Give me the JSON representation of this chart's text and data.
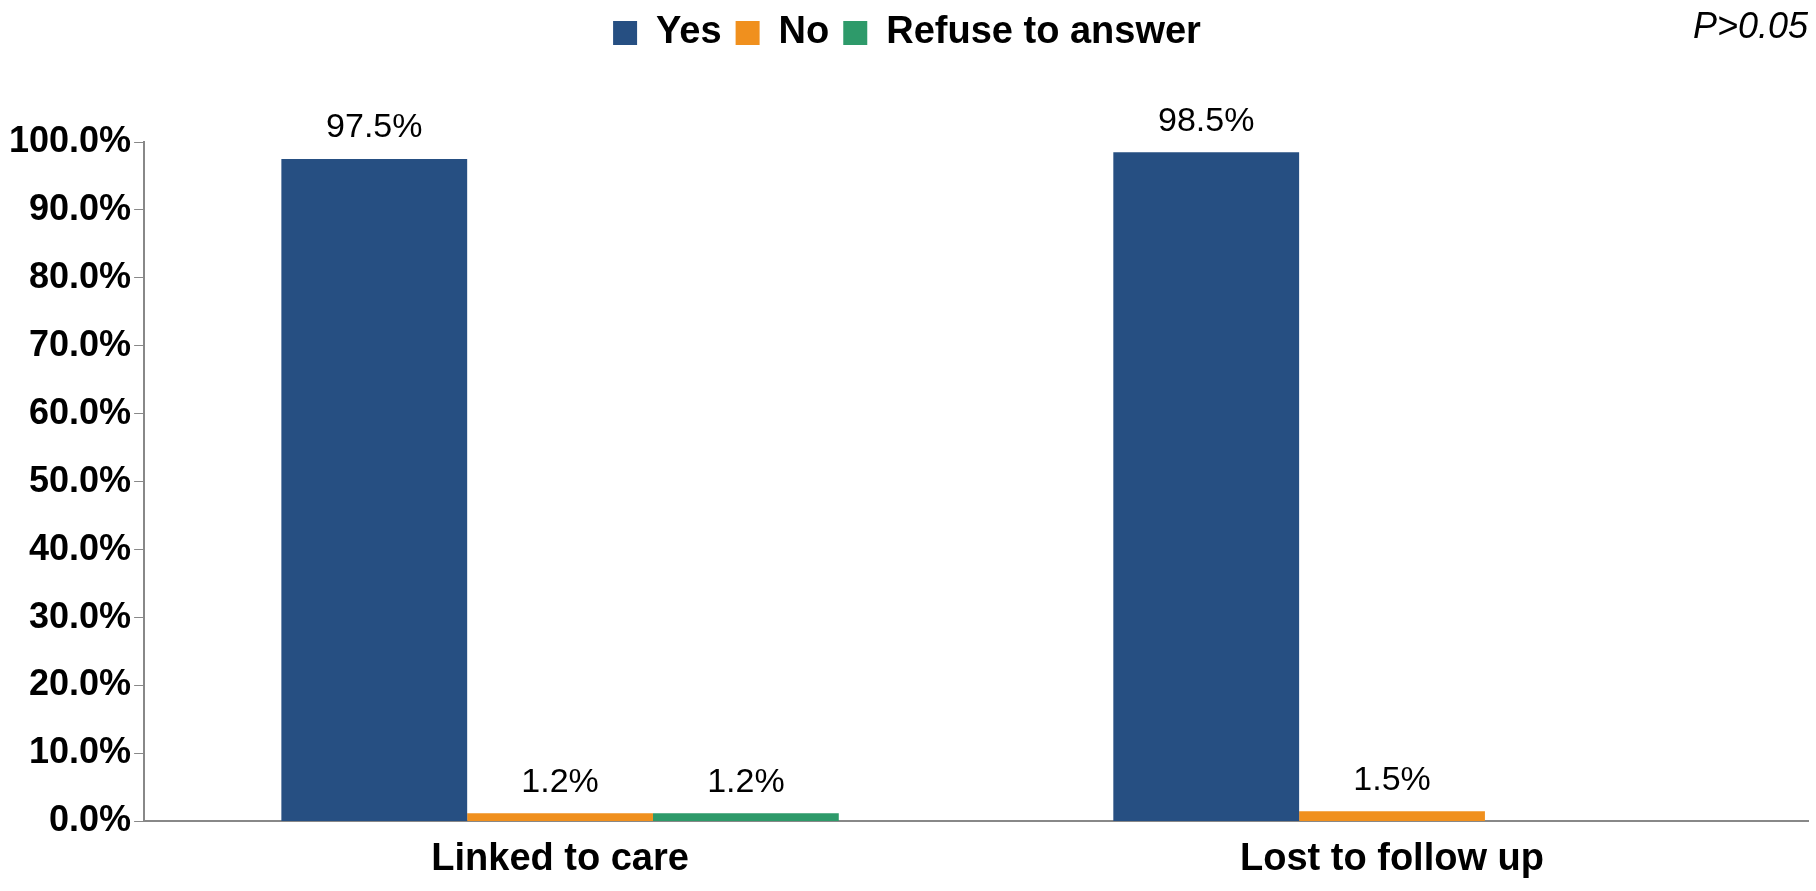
{
  "chart_data": {
    "type": "bar",
    "categories": [
      "Linked to care",
      "Lost to follow up"
    ],
    "series": [
      {
        "name": "Yes",
        "color": "#264f82",
        "values": [
          97.5,
          98.5
        ],
        "value_labels": [
          "97.5%",
          "98.5%"
        ]
      },
      {
        "name": "No",
        "color": "#f0901e",
        "values": [
          1.2,
          1.5
        ],
        "value_labels": [
          "1.2%",
          "1.5%"
        ]
      },
      {
        "name": "Refuse to answer",
        "color": "#2e9a6a",
        "values": [
          1.2,
          null
        ],
        "value_labels": [
          "1.2%",
          null
        ]
      }
    ],
    "ylim": [
      0,
      100
    ],
    "yticks": [
      {
        "value": 0,
        "label": "0.0%"
      },
      {
        "value": 10,
        "label": "10.0%"
      },
      {
        "value": 20,
        "label": "20.0%"
      },
      {
        "value": 30,
        "label": "30.0%"
      },
      {
        "value": 40,
        "label": "40.0%"
      },
      {
        "value": 50,
        "label": "50.0%"
      },
      {
        "value": 60,
        "label": "60.0%"
      },
      {
        "value": 70,
        "label": "70.0%"
      },
      {
        "value": 80,
        "label": "80.0%"
      },
      {
        "value": 90,
        "label": "90.0%"
      },
      {
        "value": 100,
        "label": "100.0%"
      }
    ],
    "grid": false,
    "legend": "top",
    "annotations": [
      "P>0.05"
    ]
  }
}
